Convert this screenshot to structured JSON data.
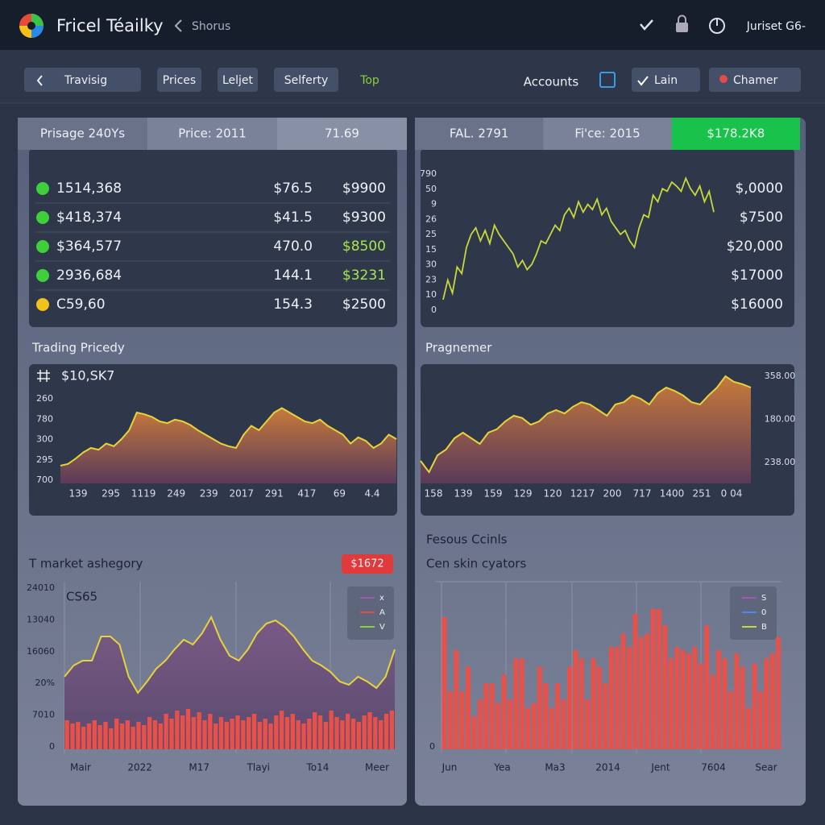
{
  "header": {
    "app_title": "Fricel Téailky",
    "breadcrumb": "Shorus",
    "user": "Juriset G6-"
  },
  "toolbar": {
    "left": [
      "Travisig",
      "Prices",
      "Leljet",
      "Selferty",
      "Top"
    ],
    "right": [
      "Accounts",
      "Lain",
      "Chamer"
    ]
  },
  "left_panel": {
    "tabs": [
      "Prisage 240Ys",
      "Price: 2011",
      "71.69"
    ],
    "rows": [
      {
        "cells": [
          "1514,368",
          "$76.5",
          "$9900"
        ],
        "dot": "#3fcf3a",
        "accent": "#f2f4f8"
      },
      {
        "cells": [
          "$418,374",
          "$41.5",
          "$9300"
        ],
        "dot": "#3fcf3a",
        "accent": "#f2f4f8"
      },
      {
        "cells": [
          "$364,577",
          "470.0",
          "$8500"
        ],
        "dot": "#3fcf3a",
        "accent": "#a6e84a"
      },
      {
        "cells": [
          "2936,684",
          "144.1",
          "$3231"
        ],
        "dot": "#3fcf3a",
        "accent": "#a6e84a"
      },
      {
        "cells": [
          "C59,60",
          "154.3",
          "$2500"
        ],
        "dot": "#f2c21a",
        "accent": "#f2f4f8"
      }
    ]
  },
  "right_panel": {
    "tabs": [
      "FAL. 2791",
      "Fi'ce: 2015",
      "$178.2K8"
    ],
    "active_color": "#19c24a"
  },
  "chart_data": [
    {
      "type": "area",
      "title": "Trading Pricedy",
      "header": "$10,SK7",
      "color": "#e6d33a",
      "y_labels": [
        "260",
        "780",
        "300",
        "295",
        "700"
      ],
      "x_labels": [
        "139",
        "295",
        "1119",
        "249",
        "239",
        "2017",
        "291",
        "417",
        "69",
        "4.4"
      ],
      "ylim": [
        0,
        100
      ],
      "values": [
        20,
        22,
        28,
        35,
        40,
        38,
        45,
        42,
        50,
        60,
        80,
        78,
        75,
        70,
        68,
        72,
        70,
        66,
        60,
        55,
        50,
        45,
        42,
        40,
        55,
        65,
        60,
        70,
        80,
        85,
        80,
        75,
        70,
        68,
        72,
        65,
        60,
        55,
        45,
        52,
        48,
        40,
        45,
        55,
        50
      ]
    },
    {
      "type": "line",
      "color": "#c8d83a",
      "y_labels": [
        "790",
        "50",
        "9",
        "26",
        "25",
        "15",
        "30",
        "23",
        "10",
        "0"
      ],
      "value_list": [
        "$,0000",
        "$7500",
        "$20,000",
        "$17000",
        "$16000"
      ],
      "ylim": [
        0,
        100
      ],
      "values": [
        5,
        20,
        10,
        30,
        25,
        45,
        55,
        60,
        50,
        58,
        48,
        62,
        55,
        50,
        45,
        40,
        30,
        35,
        28,
        32,
        40,
        50,
        48,
        55,
        62,
        58,
        70,
        75,
        68,
        80,
        72,
        78,
        74,
        82,
        70,
        75,
        65,
        60,
        55,
        58,
        50,
        45,
        60,
        70,
        68,
        85,
        80,
        90,
        88,
        95,
        92,
        88,
        98,
        90,
        85,
        92,
        80,
        88,
        72
      ]
    },
    {
      "type": "area",
      "title": "Pragnemer",
      "color": "#e6d33a",
      "y_labels": [
        "358.00",
        "180.00",
        "238.00"
      ],
      "x_labels": [
        "158",
        "139",
        "159",
        "129",
        "120",
        "1217",
        "200",
        "717",
        "1400",
        "251",
        "0 04"
      ],
      "ylim": [
        0,
        100
      ],
      "values": [
        20,
        10,
        25,
        30,
        40,
        45,
        40,
        35,
        45,
        48,
        55,
        60,
        58,
        52,
        55,
        62,
        65,
        62,
        68,
        72,
        70,
        65,
        60,
        70,
        72,
        78,
        75,
        70,
        80,
        85,
        82,
        78,
        72,
        70,
        78,
        85,
        95,
        90,
        88,
        85
      ]
    },
    {
      "type": "area_bar",
      "title": "T market ashegory",
      "badge": "$1672",
      "header": "CS65",
      "y_labels": [
        "24010",
        "13040",
        "16060",
        "20%",
        "7010",
        "0"
      ],
      "x_labels": [
        "Mair",
        "2022",
        "M17",
        "Tlayi",
        "To14",
        "Meer"
      ],
      "legend": [
        {
          "name": "x",
          "color": "#a05ab4"
        },
        {
          "name": "A",
          "color": "#e84a4a"
        },
        {
          "name": "V",
          "color": "#8ad03a"
        }
      ],
      "ylim": [
        0,
        100
      ],
      "series": [
        {
          "color": "#e6d33a",
          "values": [
            45,
            52,
            55,
            55,
            70,
            70,
            65,
            45,
            35,
            42,
            50,
            55,
            62,
            68,
            65,
            72,
            82,
            68,
            58,
            55,
            62,
            72,
            78,
            80,
            76,
            70,
            62,
            55,
            52,
            48,
            42,
            40,
            45,
            42,
            38,
            45,
            62
          ]
        },
        {
          "color": "#e8504a",
          "values": [
            18,
            16,
            17,
            14,
            16,
            18,
            15,
            17,
            13,
            19,
            16,
            18,
            14,
            17,
            15,
            20,
            18,
            16,
            22,
            19,
            24,
            21,
            25,
            20,
            23,
            18,
            22,
            16,
            20,
            17,
            19,
            21,
            18,
            20,
            22,
            17,
            19,
            16,
            21,
            24,
            20,
            22,
            18,
            16,
            19,
            23,
            21,
            17,
            24,
            20,
            18,
            22,
            19,
            17,
            21,
            23,
            20,
            18,
            22,
            24
          ]
        }
      ]
    },
    {
      "type": "bar",
      "title": "Fesous Ccinls",
      "subtitle": "Cen skin cyators",
      "color": "#e8504a",
      "y_labels": [
        "0"
      ],
      "x_labels": [
        "Jun",
        "Yea",
        "Ma3",
        "2014",
        "Jent",
        "7604",
        "Sear"
      ],
      "legend": [
        {
          "name": "S",
          "color": "#a05ab4"
        },
        {
          "name": "0",
          "color": "#4a8ae8"
        },
        {
          "name": "B",
          "color": "#c8d83a"
        }
      ],
      "ylim": [
        0,
        100
      ],
      "values": [
        80,
        35,
        60,
        35,
        50,
        20,
        30,
        40,
        40,
        28,
        45,
        30,
        55,
        55,
        25,
        28,
        50,
        40,
        25,
        40,
        30,
        50,
        60,
        55,
        30,
        55,
        50,
        40,
        62,
        62,
        70,
        62,
        82,
        68,
        70,
        85,
        85,
        75,
        55,
        62,
        60,
        58,
        62,
        52,
        75,
        45,
        60,
        55,
        35,
        58,
        50,
        25,
        52,
        35,
        55,
        58,
        68
      ]
    }
  ]
}
